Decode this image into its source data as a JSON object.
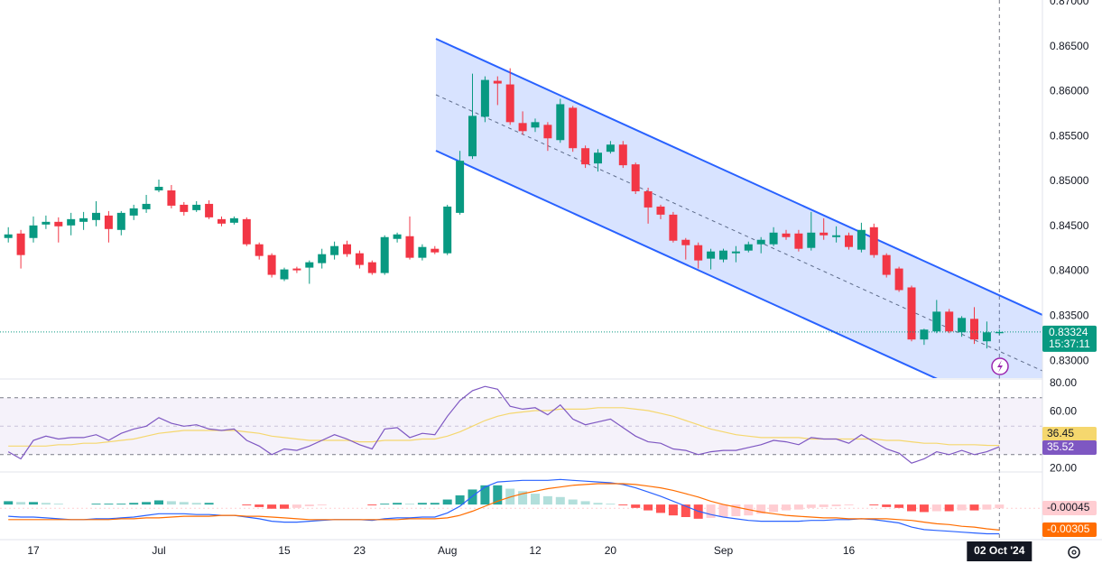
{
  "chart_data": [
    {
      "type": "candlestick",
      "categories": [
        null,
        null,
        "17",
        null,
        null,
        null,
        null,
        null,
        null,
        null,
        null,
        null,
        "Jul",
        null,
        null,
        null,
        null,
        null,
        null,
        null,
        null,
        null,
        "15",
        null,
        null,
        null,
        null,
        null,
        "23",
        null,
        null,
        null,
        null,
        null,
        null,
        "Aug",
        null,
        null,
        null,
        null,
        null,
        null,
        "12",
        null,
        null,
        null,
        null,
        null,
        "20",
        null,
        null,
        null,
        null,
        null,
        null,
        null,
        null,
        "Sep",
        null,
        null,
        null,
        null,
        null,
        null,
        null,
        null,
        null,
        "16",
        null,
        null,
        null,
        null,
        null,
        null,
        null,
        null,
        null,
        null,
        null,
        "02 Oct '24"
      ],
      "open": [
        0.8437,
        0.8442,
        0.8437,
        0.8452,
        0.8455,
        0.8451,
        0.8455,
        0.8457,
        0.8462,
        0.8446,
        0.8462,
        0.8469,
        0.849,
        0.849,
        0.8474,
        0.8468,
        0.8475,
        0.8458,
        0.8454,
        0.8458,
        0.843,
        0.8418,
        0.8391,
        0.8403,
        0.8404,
        0.8409,
        0.8418,
        0.843,
        0.842,
        0.841,
        0.8398,
        0.8436,
        0.8439,
        0.8415,
        0.8425,
        0.842,
        0.8465,
        0.8528,
        0.8572,
        0.8612,
        0.8608,
        0.8565,
        0.856,
        0.8563,
        0.8546,
        0.8582,
        0.8537,
        0.852,
        0.8533,
        0.8541,
        0.8519,
        0.8489,
        0.8472,
        0.8463,
        0.8435,
        0.8429,
        0.8414,
        0.8413,
        0.842,
        0.8423,
        0.843,
        0.843,
        0.8442,
        0.8442,
        0.8426,
        0.8443,
        0.8438,
        0.844,
        0.8424,
        0.8449,
        0.8418,
        0.8403,
        0.8382,
        0.8324,
        0.8333,
        0.8355,
        0.8332,
        0.8347,
        0.8322,
        0.8331
      ],
      "high": [
        0.8449,
        0.8446,
        0.8461,
        0.8462,
        0.846,
        0.8465,
        0.8466,
        0.8478,
        0.8467,
        0.8467,
        0.8474,
        0.8485,
        0.8502,
        0.8496,
        0.8477,
        0.8478,
        0.8479,
        0.8461,
        0.8461,
        0.846,
        0.8432,
        0.842,
        0.8404,
        0.8405,
        0.8412,
        0.8425,
        0.8433,
        0.8434,
        0.8423,
        0.8412,
        0.844,
        0.8443,
        0.8461,
        0.843,
        0.8428,
        0.8474,
        0.8534,
        0.862,
        0.8617,
        0.8617,
        0.8626,
        0.8578,
        0.857,
        0.8566,
        0.8592,
        0.8584,
        0.854,
        0.8536,
        0.8545,
        0.8545,
        0.8521,
        0.8493,
        0.8474,
        0.8466,
        0.8437,
        0.8432,
        0.8425,
        0.8425,
        0.8428,
        0.8433,
        0.8438,
        0.8449,
        0.8446,
        0.8446,
        0.8466,
        0.8459,
        0.845,
        0.8443,
        0.8454,
        0.8453,
        0.842,
        0.8405,
        0.8384,
        0.8336,
        0.8368,
        0.8358,
        0.835,
        0.836,
        0.8344,
        0.8335
      ],
      "low": [
        0.8432,
        0.8403,
        0.8432,
        0.8447,
        0.8432,
        0.844,
        0.8446,
        0.845,
        0.8432,
        0.844,
        0.8457,
        0.8465,
        0.8488,
        0.847,
        0.8462,
        0.8466,
        0.8458,
        0.845,
        0.8452,
        0.8428,
        0.8413,
        0.8393,
        0.8389,
        0.8398,
        0.8386,
        0.8403,
        0.8413,
        0.8416,
        0.8403,
        0.8396,
        0.8396,
        0.8432,
        0.8413,
        0.8412,
        0.8419,
        0.8418,
        0.8463,
        0.8525,
        0.8566,
        0.8585,
        0.8563,
        0.8552,
        0.8555,
        0.8534,
        0.8543,
        0.8533,
        0.8515,
        0.8511,
        0.8531,
        0.8515,
        0.8486,
        0.8453,
        0.8458,
        0.8432,
        0.8413,
        0.8403,
        0.8402,
        0.841,
        0.841,
        0.8421,
        0.842,
        0.8428,
        0.8435,
        0.8422,
        0.8423,
        0.8435,
        0.8432,
        0.8424,
        0.8421,
        0.8415,
        0.8393,
        0.8377,
        0.8322,
        0.8318,
        0.8331,
        0.8331,
        0.8327,
        0.8319,
        0.8314,
        0.8329
      ],
      "close": [
        0.8441,
        0.8418,
        0.8451,
        0.8455,
        0.845,
        0.8458,
        0.8459,
        0.8465,
        0.8447,
        0.8465,
        0.847,
        0.8475,
        0.8494,
        0.8473,
        0.8466,
        0.8474,
        0.846,
        0.8453,
        0.8459,
        0.843,
        0.8417,
        0.8396,
        0.8402,
        0.8401,
        0.841,
        0.8419,
        0.8428,
        0.8419,
        0.8407,
        0.8398,
        0.8438,
        0.8441,
        0.8415,
        0.8427,
        0.8421,
        0.8472,
        0.8523,
        0.8573,
        0.8613,
        0.8609,
        0.8566,
        0.8556,
        0.8566,
        0.8548,
        0.8586,
        0.8537,
        0.8519,
        0.8532,
        0.8541,
        0.8518,
        0.8489,
        0.8471,
        0.8463,
        0.8434,
        0.8429,
        0.8412,
        0.8422,
        0.8423,
        0.8422,
        0.843,
        0.8435,
        0.8443,
        0.8438,
        0.8425,
        0.8443,
        0.844,
        0.844,
        0.8427,
        0.8446,
        0.8418,
        0.8396,
        0.8379,
        0.8324,
        0.8335,
        0.8355,
        0.8333,
        0.8348,
        0.8324,
        0.8332,
        0.83324
      ],
      "up_color": "#089981",
      "down_color": "#f23645",
      "countdown": "15:37:11",
      "ylim": [
        0.828,
        0.8702
      ],
      "yticks": [
        {
          "value": 0.87,
          "label": "0.87000"
        },
        {
          "value": 0.865,
          "label": "0.86500"
        },
        {
          "value": 0.86,
          "label": "0.86000"
        },
        {
          "value": 0.855,
          "label": "0.85500"
        },
        {
          "value": 0.85,
          "label": "0.85000"
        },
        {
          "value": 0.845,
          "label": "0.84500"
        },
        {
          "value": 0.84,
          "label": "0.84000"
        },
        {
          "value": 0.835,
          "label": "0.83500"
        },
        {
          "value": 0.83,
          "label": "0.83000"
        }
      ],
      "grid": true
    },
    {
      "type": "line",
      "series": [
        {
          "color": "#7e57c2",
          "values": [
            32,
            27,
            40,
            43,
            41,
            42,
            42,
            44,
            40,
            45,
            48,
            50,
            56,
            52,
            50,
            51,
            48,
            47,
            48,
            40,
            36,
            30,
            34,
            33,
            36,
            40,
            44,
            41,
            37,
            34,
            48,
            49,
            42,
            45,
            44,
            57,
            68,
            75,
            78,
            76,
            64,
            62,
            63,
            58,
            65,
            55,
            51,
            53,
            55,
            49,
            43,
            39,
            38,
            34,
            33,
            30,
            32,
            33,
            33,
            35,
            37,
            40,
            39,
            37,
            42,
            41,
            41,
            38,
            44,
            39,
            34,
            31,
            24,
            27,
            32,
            30,
            33,
            30,
            32,
            35.52
          ]
        },
        {
          "color": "#f5d76e",
          "values": [
            36,
            36,
            36,
            36,
            37,
            37,
            38,
            38,
            39,
            40,
            41,
            43,
            45,
            46,
            47,
            47,
            47,
            47,
            47,
            46,
            45,
            43,
            42,
            41,
            40,
            40,
            40,
            40,
            39,
            39,
            40,
            40,
            40,
            41,
            41,
            43,
            46,
            50,
            54,
            57,
            59,
            60,
            61,
            61,
            62,
            62,
            62,
            63,
            63,
            63,
            62,
            61,
            59,
            57,
            54,
            51,
            48,
            46,
            44,
            43,
            42,
            42,
            42,
            42,
            41,
            41,
            41,
            41,
            41,
            41,
            40,
            40,
            39,
            38,
            38,
            37,
            37,
            37,
            36.5,
            36.45
          ]
        }
      ],
      "levels": [
        70,
        50,
        30
      ],
      "ylim": [
        17.8,
        83.2
      ],
      "yticks": [
        {
          "value": 80,
          "label": "80.00"
        },
        {
          "value": 60,
          "label": "60.00"
        },
        {
          "value": 20,
          "label": "20.00"
        }
      ]
    },
    {
      "type": "macd",
      "histogram": {
        "colors": [
          "#26a69a",
          "#b2dfdb",
          "#ff5252",
          "#ffcdd2"
        ],
        "values": [
          0.0004,
          0.0003,
          0.0003,
          0.0002,
          0.0001,
          0,
          0,
          0.0001,
          0.0001,
          0.0001,
          0.0002,
          0.0003,
          0.0005,
          0.0004,
          0.0003,
          0.0002,
          0.0002,
          0,
          0,
          -0.0001,
          -0.0003,
          -0.0005,
          -0.0005,
          -0.0004,
          -0.0002,
          -0.0001,
          0,
          0,
          0,
          -0.0001,
          0.0001,
          0.0002,
          0.0001,
          0.0002,
          0.0002,
          0.0006,
          0.0011,
          0.0018,
          0.0023,
          0.0023,
          0.0019,
          0.0016,
          0.0013,
          0.001,
          0.0009,
          0.0006,
          0.0004,
          0.0002,
          0.0001,
          -0.0001,
          -0.0004,
          -0.0007,
          -0.001,
          -0.0013,
          -0.0015,
          -0.0017,
          -0.0016,
          -0.0015,
          -0.0014,
          -0.0013,
          -0.0011,
          -0.0009,
          -0.0007,
          -0.0006,
          -0.0004,
          -0.0003,
          -0.0002,
          -0.0001,
          0,
          -0.0001,
          -0.0003,
          -0.0004,
          -0.0008,
          -0.0009,
          -0.0008,
          -0.0008,
          -0.0007,
          -0.0007,
          -0.0006,
          -0.00045
        ]
      },
      "series": [
        {
          "color": "#2962ff",
          "values": [
            -0.0014,
            -0.0015,
            -0.0015,
            -0.0016,
            -0.0017,
            -0.0018,
            -0.0018,
            -0.0017,
            -0.0017,
            -0.0016,
            -0.0015,
            -0.0013,
            -0.0011,
            -0.0011,
            -0.0011,
            -0.0012,
            -0.0012,
            -0.0013,
            -0.0013,
            -0.0015,
            -0.0017,
            -0.002,
            -0.0021,
            -0.0021,
            -0.002,
            -0.0019,
            -0.0018,
            -0.0018,
            -0.0018,
            -0.0019,
            -0.0017,
            -0.0016,
            -0.0016,
            -0.0015,
            -0.0015,
            -0.001,
            -0.0002,
            0.001,
            0.0021,
            0.0027,
            0.0028,
            0.0029,
            0.0029,
            0.0029,
            0.003,
            0.0029,
            0.0028,
            0.0027,
            0.0026,
            0.0024,
            0.002,
            0.0015,
            0.001,
            0.0004,
            -0.0002,
            -0.0008,
            -0.0012,
            -0.0015,
            -0.0017,
            -0.0019,
            -0.002,
            -0.002,
            -0.002,
            -0.002,
            -0.0019,
            -0.0019,
            -0.0018,
            -0.0018,
            -0.0017,
            -0.0018,
            -0.002,
            -0.0022,
            -0.0027,
            -0.003,
            -0.0031,
            -0.0032,
            -0.0033,
            -0.0034,
            -0.0035,
            -0.0035
          ]
        },
        {
          "color": "#ff6d00",
          "values": [
            -0.0018,
            -0.0018,
            -0.0018,
            -0.0018,
            -0.0018,
            -0.0018,
            -0.0018,
            -0.0018,
            -0.0018,
            -0.0017,
            -0.0017,
            -0.0016,
            -0.0016,
            -0.0015,
            -0.0014,
            -0.0014,
            -0.0014,
            -0.0013,
            -0.0013,
            -0.0014,
            -0.0014,
            -0.0015,
            -0.0016,
            -0.0017,
            -0.0018,
            -0.0018,
            -0.0018,
            -0.0018,
            -0.0018,
            -0.0018,
            -0.0018,
            -0.0018,
            -0.0017,
            -0.0017,
            -0.0017,
            -0.0016,
            -0.0013,
            -0.0008,
            -0.0002,
            0.0004,
            0.0009,
            0.0013,
            0.0016,
            0.0019,
            0.0021,
            0.0023,
            0.0024,
            0.0025,
            0.0025,
            0.0025,
            0.0024,
            0.0022,
            0.002,
            0.0017,
            0.0013,
            0.0009,
            0.0004,
            0,
            -0.0003,
            -0.0006,
            -0.0009,
            -0.0011,
            -0.0013,
            -0.0014,
            -0.0015,
            -0.0016,
            -0.0016,
            -0.0017,
            -0.0017,
            -0.0017,
            -0.0017,
            -0.0018,
            -0.0019,
            -0.0021,
            -0.0023,
            -0.0024,
            -0.0026,
            -0.0027,
            -0.0029,
            -0.00305
          ]
        }
      ],
      "ylim": [
        -0.0042,
        0.0039
      ]
    }
  ]
}
